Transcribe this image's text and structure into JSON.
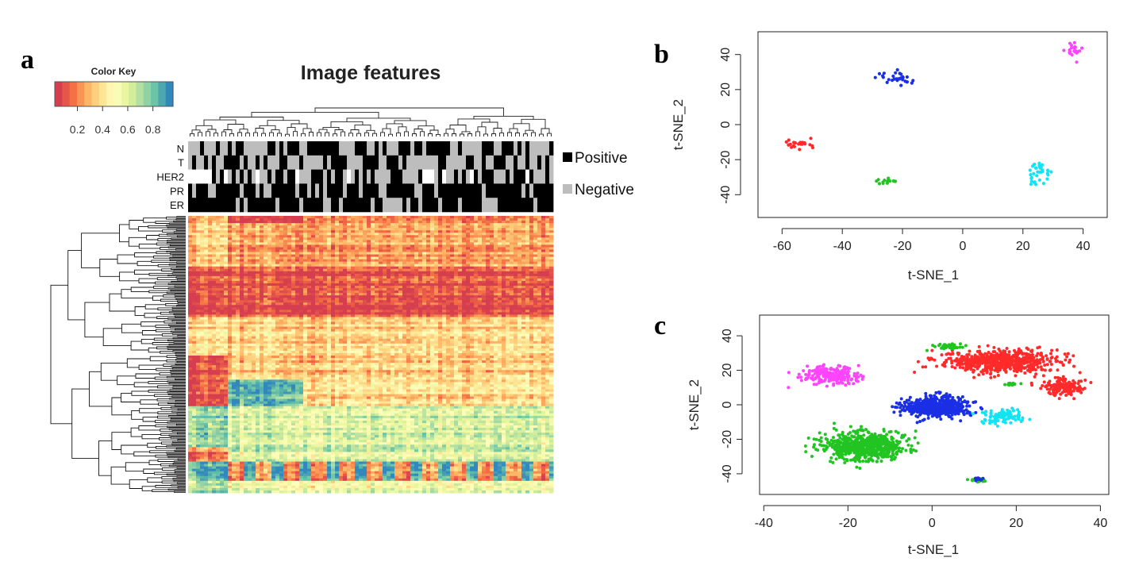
{
  "panels": {
    "a": {
      "letter": "a",
      "title": "Image features",
      "color_key": {
        "title": "Color Key",
        "ticks": [
          "0.2",
          "0.4",
          "0.6",
          "0.8"
        ],
        "tick_values": [
          0.2,
          0.4,
          0.6,
          0.8
        ],
        "range": [
          0.02,
          0.96
        ],
        "palette": [
          "#d53e4f",
          "#f46d43",
          "#fdae61",
          "#fee08b",
          "#ffffbf",
          "#e6f598",
          "#abdda4",
          "#66c2a5",
          "#3288bd"
        ]
      },
      "annotation_rows": [
        "N",
        "T",
        "HER2",
        "PR",
        "ER"
      ],
      "legend": [
        {
          "label": "Positive",
          "color": "#000000"
        },
        {
          "label": "Negative",
          "color": "#bdbdbd"
        }
      ]
    },
    "b": {
      "letter": "b",
      "chart_data": {
        "type": "scatter",
        "xlabel": "t-SNE_1",
        "ylabel": "t-SNE_2",
        "xlim": [
          -68,
          48
        ],
        "ylim": [
          -53,
          53
        ],
        "xticks": [
          -60,
          -40,
          -20,
          0,
          20,
          40
        ],
        "yticks": [
          -40,
          -20,
          0,
          20,
          40
        ],
        "clusters": [
          {
            "color": "#ff2a2a",
            "center": [
              -54,
              -11
            ],
            "spread": [
              3.5,
              2.2
            ],
            "n": 22
          },
          {
            "color": "#1a2fe6",
            "center": [
              -22,
              27
            ],
            "spread": [
              4.5,
              3.5
            ],
            "n": 30
          },
          {
            "color": "#22c422",
            "center": [
              -25,
              -32
            ],
            "spread": [
              2.8,
              1.5
            ],
            "n": 14
          },
          {
            "color": "#ff44ff",
            "center": [
              37,
              42
            ],
            "spread": [
              3.0,
              3.2
            ],
            "n": 22
          },
          {
            "color": "#11e4f2",
            "center": [
              25,
              -28
            ],
            "spread": [
              3.5,
              6.5
            ],
            "n": 36
          }
        ]
      }
    },
    "c": {
      "letter": "c",
      "chart_data": {
        "type": "scatter",
        "xlabel": "t-SNE_1",
        "ylabel": "t-SNE_2",
        "xlim": [
          -41,
          42
        ],
        "ylim": [
          -52,
          52
        ],
        "xticks": [
          -40,
          -20,
          0,
          20,
          40
        ],
        "yticks": [
          -40,
          -20,
          0,
          20,
          40
        ],
        "clusters": [
          {
            "color": "#ff44ff",
            "center": [
              -24,
              17
            ],
            "spread": [
              5.5,
              4.5
            ],
            "n": 220
          },
          {
            "color": "#22c422",
            "center": [
              -16,
              -24
            ],
            "spread": [
              8.0,
              6.5
            ],
            "n": 700
          },
          {
            "color": "#1a2fe6",
            "center": [
              1,
              -1
            ],
            "spread": [
              6.5,
              5.0
            ],
            "n": 520
          },
          {
            "color": "#ff2a2a",
            "center": [
              17,
              25
            ],
            "spread": [
              11.0,
              5.5
            ],
            "n": 650
          },
          {
            "color": "#ff2a2a",
            "center": [
              31,
              10
            ],
            "spread": [
              4.0,
              4.0
            ],
            "n": 150
          },
          {
            "color": "#11e4f2",
            "center": [
              17,
              -7
            ],
            "spread": [
              4.0,
              3.5
            ],
            "n": 110
          },
          {
            "color": "#22c422",
            "center": [
              4,
              34
            ],
            "spread": [
              3.0,
              1.5
            ],
            "n": 40
          },
          {
            "color": "#22c422",
            "center": [
              11,
              -44
            ],
            "spread": [
              1.5,
              0.9
            ],
            "n": 30
          },
          {
            "color": "#1a2fe6",
            "center": [
              11,
              -43
            ],
            "spread": [
              1.2,
              0.8
            ],
            "n": 12
          },
          {
            "color": "#22c422",
            "center": [
              19,
              12
            ],
            "spread": [
              1.5,
              0.6
            ],
            "n": 12
          }
        ]
      }
    }
  }
}
